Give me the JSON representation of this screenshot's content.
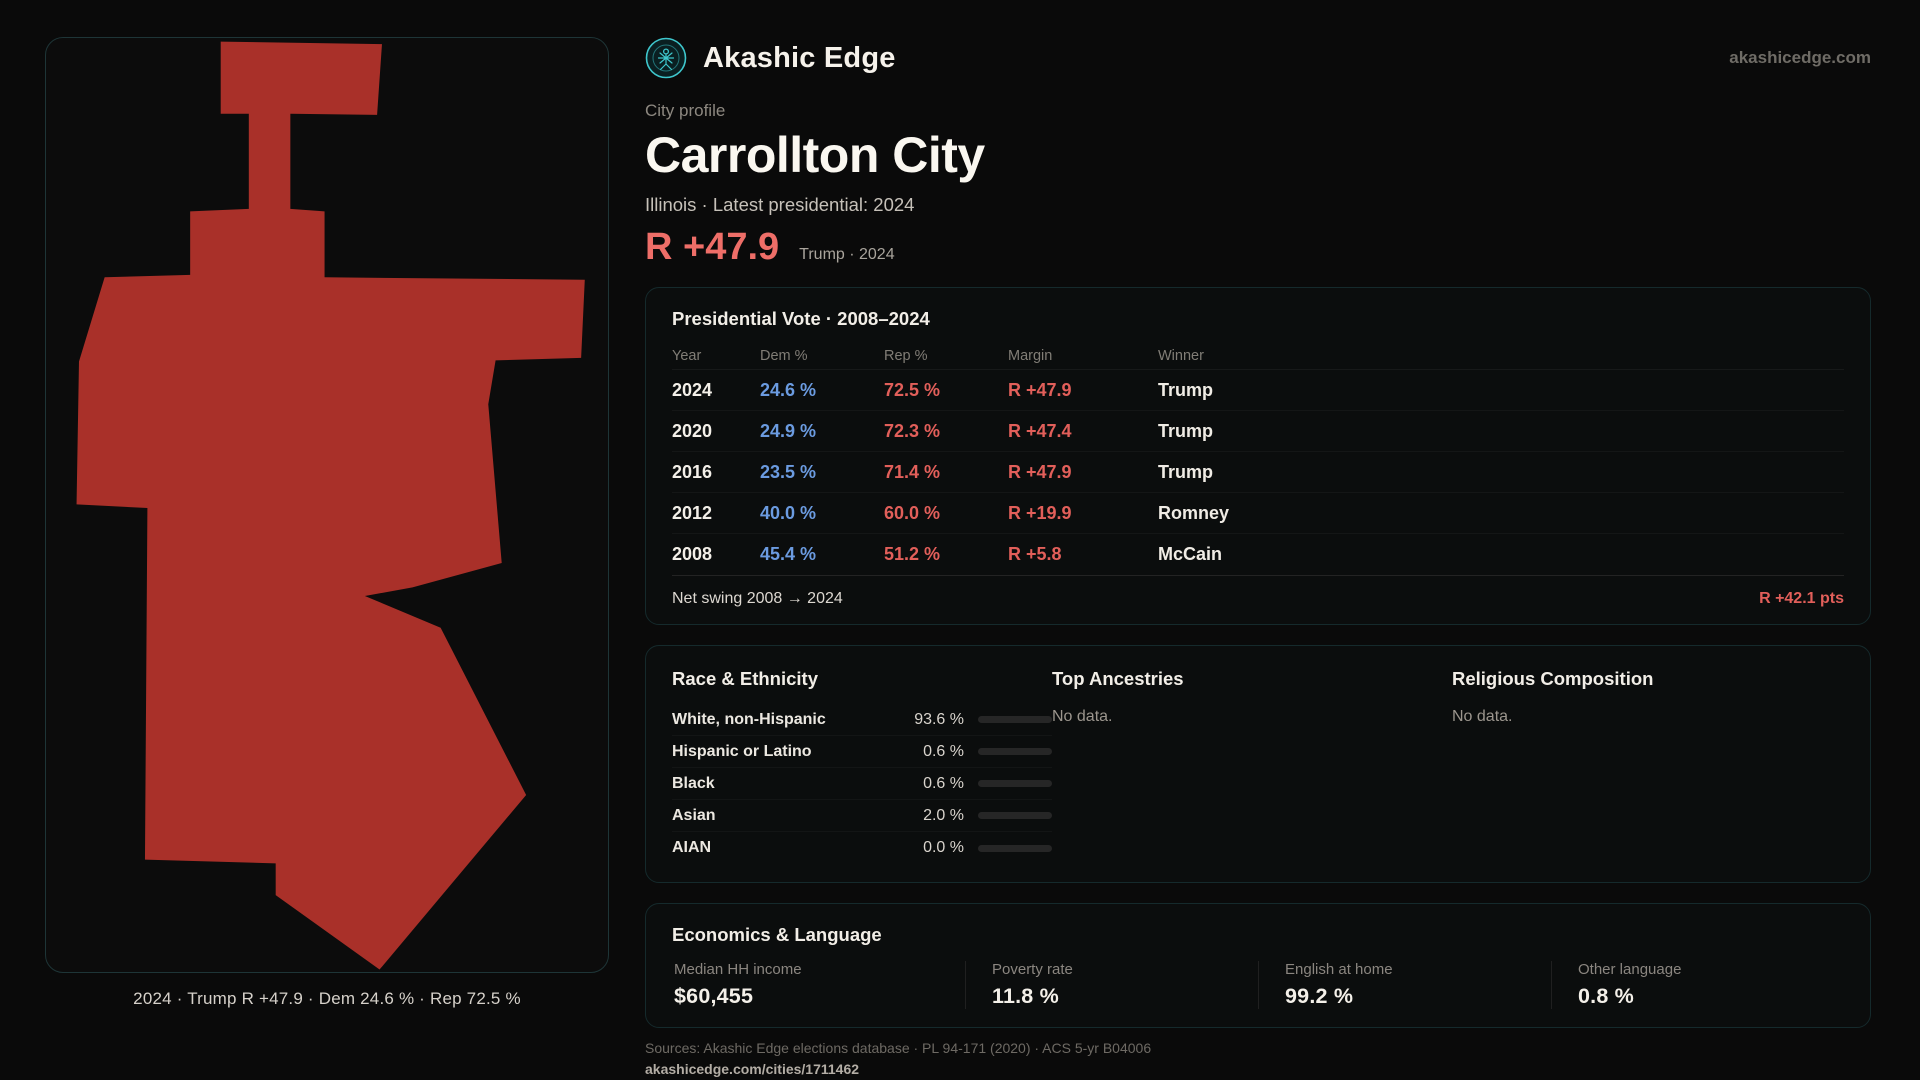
{
  "colors": {
    "accent_teal": "#3ec6cc",
    "dem_blue": "#6b9be0",
    "rep_red": "#e25f5a",
    "margin_red": "#ee6e68",
    "map_fill": "#a93029",
    "bar_fill": "#9097a4"
  },
  "header": {
    "brand": "Akashic Edge",
    "site": "akashicedge.com"
  },
  "profile": {
    "kicker": "City profile",
    "title": "Carrollton City",
    "subtitle": "Illinois · Latest presidential: 2024",
    "headline_margin": "R +47.9",
    "headline_context": "Trump · 2024"
  },
  "map": {
    "caption": "2024 · Trump R +47.9 · Dem 24.6 % · Rep 72.5 %"
  },
  "vote_card": {
    "title": "Presidential Vote · 2008–2024",
    "columns": {
      "year": "Year",
      "dem": "Dem %",
      "rep": "Rep %",
      "margin": "Margin",
      "winner": "Winner"
    },
    "rows": [
      {
        "year": "2024",
        "dem": "24.6 %",
        "rep": "72.5 %",
        "margin": "R +47.9",
        "winner": "Trump"
      },
      {
        "year": "2020",
        "dem": "24.9 %",
        "rep": "72.3 %",
        "margin": "R +47.4",
        "winner": "Trump"
      },
      {
        "year": "2016",
        "dem": "23.5 %",
        "rep": "71.4 %",
        "margin": "R +47.9",
        "winner": "Trump"
      },
      {
        "year": "2012",
        "dem": "40.0 %",
        "rep": "60.0 %",
        "margin": "R +19.9",
        "winner": "Romney"
      },
      {
        "year": "2008",
        "dem": "45.4 %",
        "rep": "51.2 %",
        "margin": "R +5.8",
        "winner": "McCain"
      }
    ],
    "net_swing_label": "Net swing 2008 → 2024",
    "net_swing_value": "R +42.1 pts"
  },
  "demographics": {
    "race": {
      "title": "Race & Ethnicity",
      "rows": [
        {
          "label": "White, non-Hispanic",
          "value": "93.6 %",
          "pct": 93.6
        },
        {
          "label": "Hispanic or Latino",
          "value": "0.6 %",
          "pct": 0.6
        },
        {
          "label": "Black",
          "value": "0.6 %",
          "pct": 0.6
        },
        {
          "label": "Asian",
          "value": "2.0 %",
          "pct": 2.0
        },
        {
          "label": "AIAN",
          "value": "0.0 %",
          "pct": 0
        }
      ]
    },
    "ancestries": {
      "title": "Top Ancestries",
      "empty": "No data."
    },
    "religion": {
      "title": "Religious Composition",
      "empty": "No data."
    }
  },
  "economics": {
    "title": "Economics & Language",
    "stats": [
      {
        "label": "Median HH income",
        "value": "$60,455"
      },
      {
        "label": "Poverty rate",
        "value": "11.8 %"
      },
      {
        "label": "English at home",
        "value": "99.2 %"
      },
      {
        "label": "Other language",
        "value": "0.8 %"
      }
    ]
  },
  "footer": {
    "sources": "Sources: Akashic Edge elections database · PL 94-171 (2020) · ACS 5-yr B04006",
    "permalink": "akashicedge.com/cities/1711462"
  }
}
